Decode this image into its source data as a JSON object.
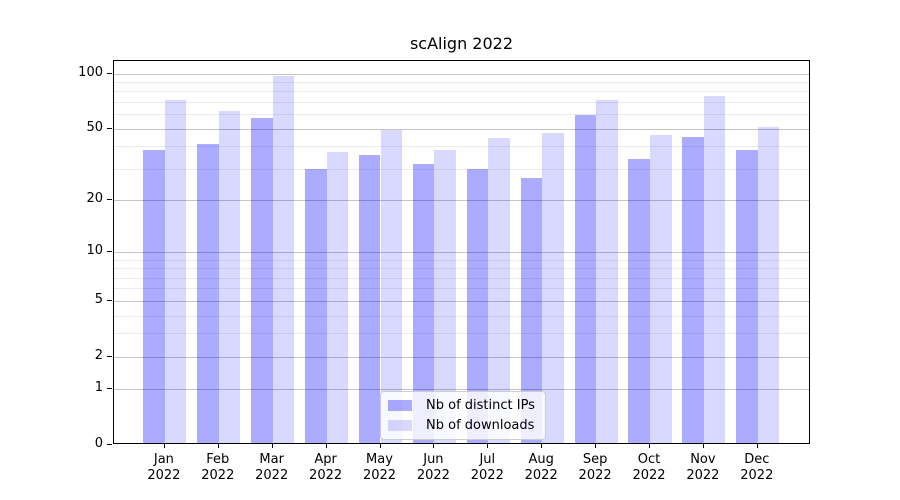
{
  "chart_data": {
    "type": "bar",
    "title": "scAlign 2022",
    "categories": [
      "Jan",
      "Feb",
      "Mar",
      "Apr",
      "May",
      "Jun",
      "Jul",
      "Aug",
      "Sep",
      "Oct",
      "Nov",
      "Dec"
    ],
    "year": "2022",
    "series": [
      {
        "name": "Nb of distinct IPs",
        "color": "rgba(0,0,255,0.33)",
        "color_hex": "#aaaaff",
        "values": [
          37,
          40,
          56,
          29,
          35,
          31,
          29,
          26,
          58,
          33,
          44,
          37
        ]
      },
      {
        "name": "Nb of downloads",
        "color": "rgba(0,0,255,0.15)",
        "color_hex": "#d9d9ff",
        "values": [
          70,
          61,
          95,
          36,
          48,
          37,
          43,
          46,
          70,
          45,
          74,
          50
        ]
      }
    ],
    "y_axis": {
      "scale": "log1p",
      "ticks": [
        0,
        1,
        2,
        5,
        10,
        20,
        50,
        100
      ],
      "minor_gridlines": [
        3,
        4,
        6,
        7,
        8,
        9,
        30,
        40,
        60,
        70,
        80,
        90
      ],
      "max": 117
    },
    "legend": {
      "position": "lower center"
    },
    "grid": {
      "major_color": "#c4c4c4",
      "minor_color": "#ebebeb",
      "on": true
    }
  }
}
